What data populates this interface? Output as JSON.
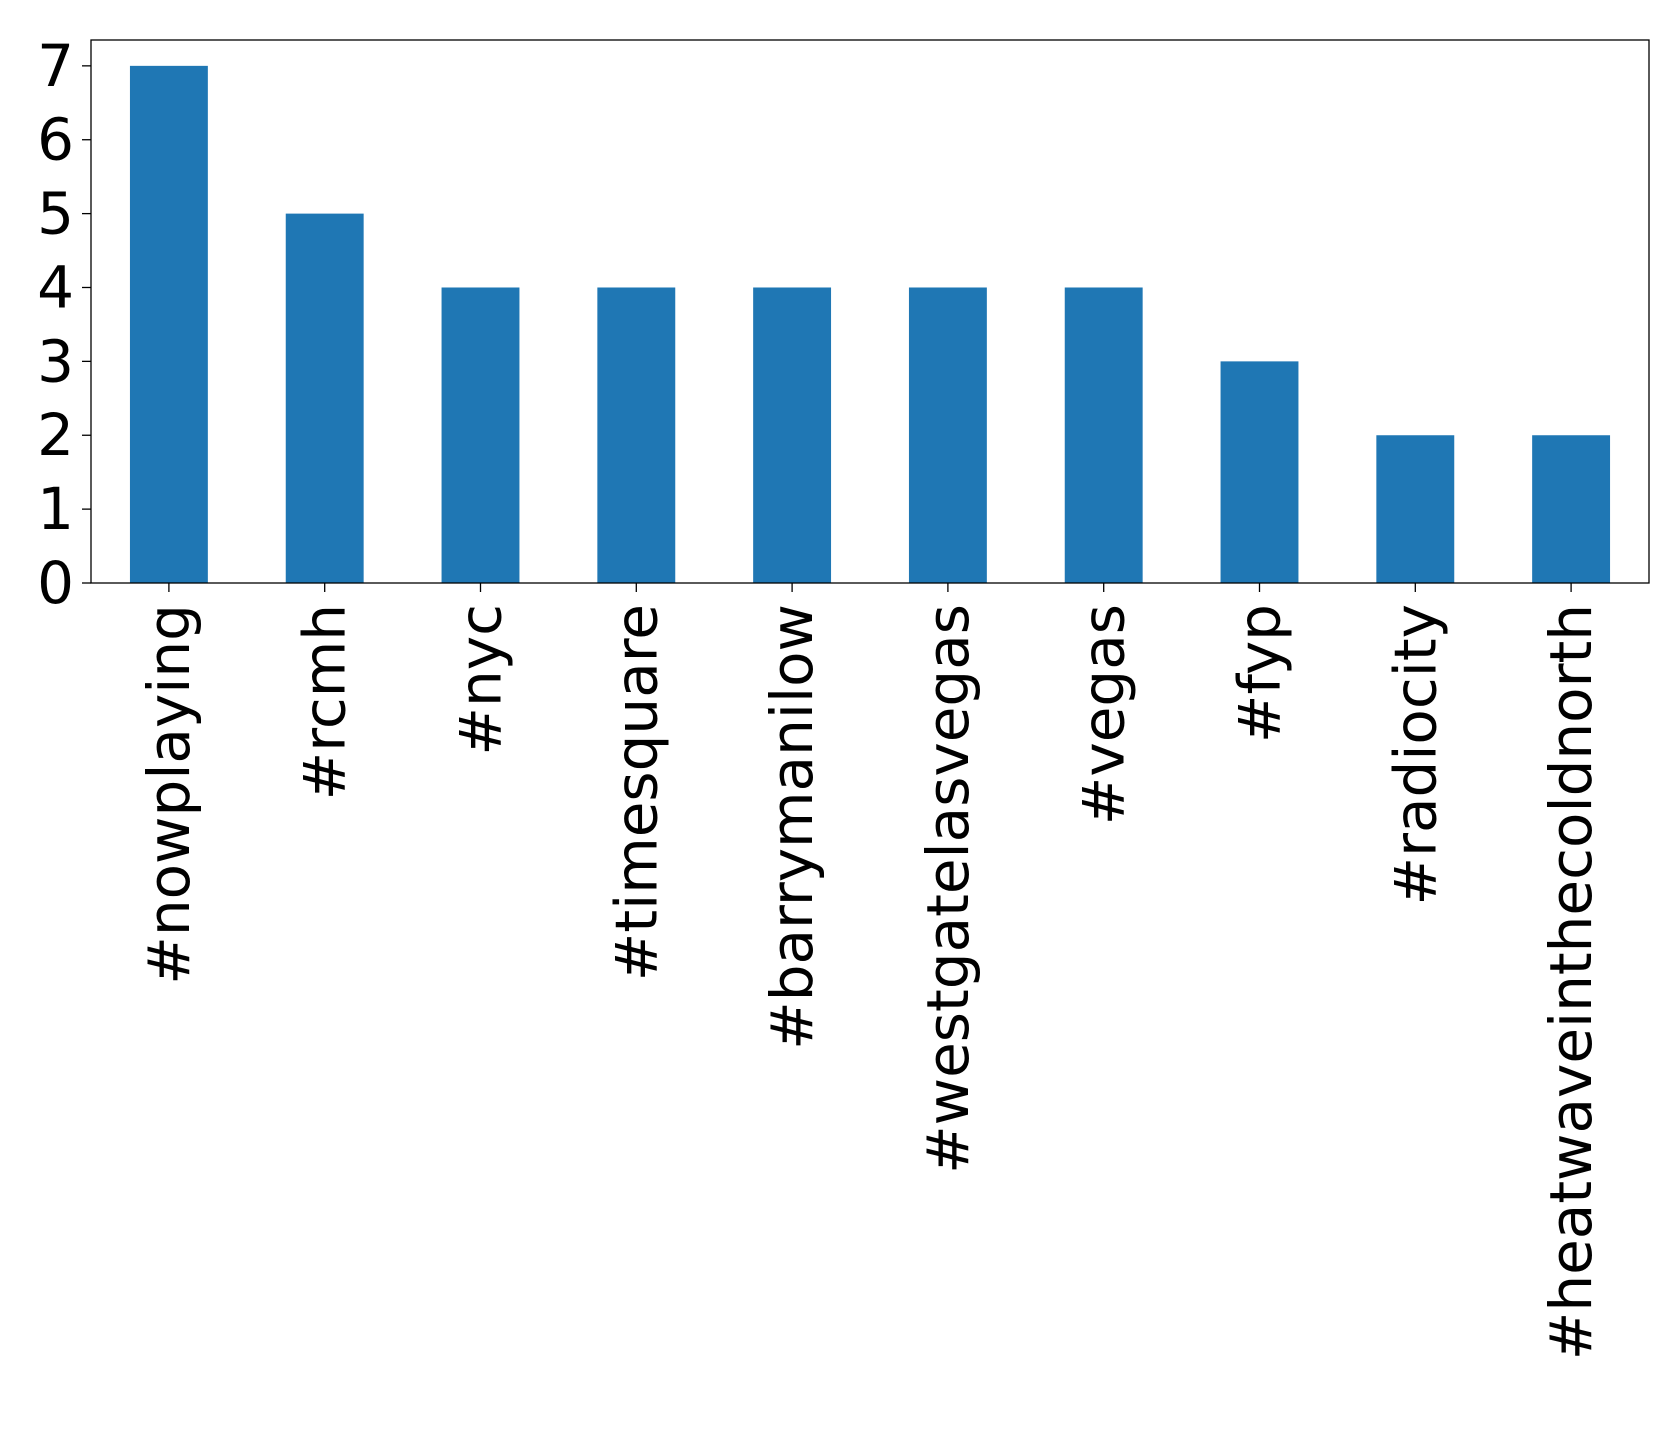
{
  "chart_data": {
    "type": "bar",
    "title": "",
    "xlabel": "",
    "ylabel": "",
    "categories": [
      "#nowplaying",
      "#rcmh",
      "#nyc",
      "#timesquare",
      "#barrymanilow",
      "#westgatelasvegas",
      "#vegas",
      "#fyp",
      "#radiocity",
      "#heatwaveinthecoldnorth"
    ],
    "values": [
      7,
      5,
      4,
      4,
      4,
      4,
      4,
      3,
      2,
      2
    ],
    "ylim": [
      0,
      7.35
    ],
    "yticks": [
      "0",
      "1",
      "2",
      "3",
      "4",
      "5",
      "6",
      "7"
    ],
    "bar_color": "#1f77b4",
    "grid": false,
    "legend": "none"
  }
}
